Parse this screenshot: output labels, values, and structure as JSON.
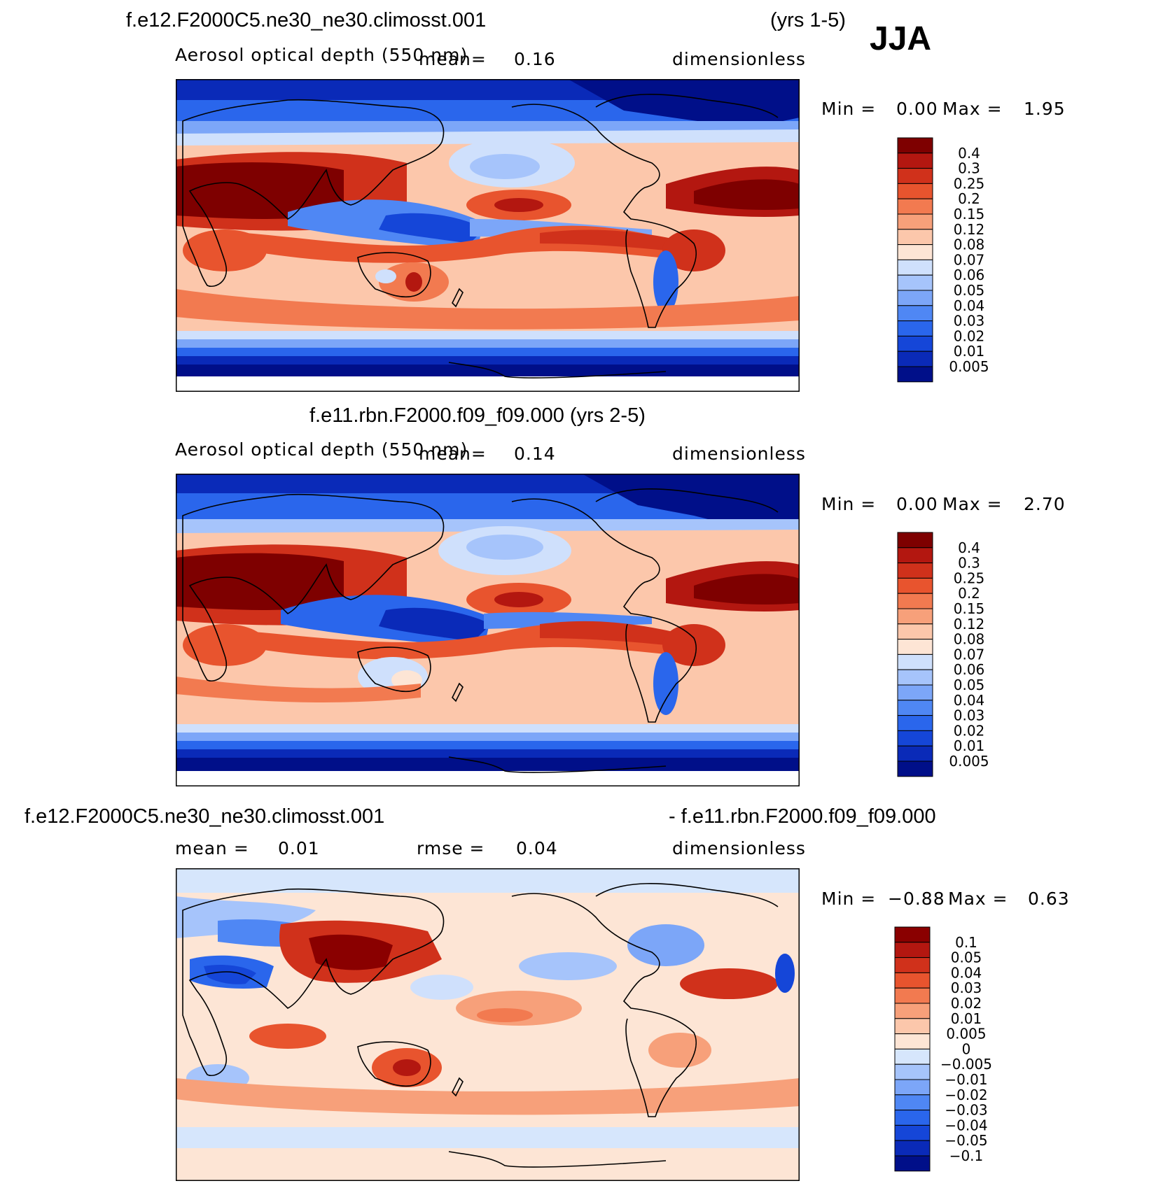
{
  "season": "JJA",
  "panels": [
    {
      "id": "p1",
      "case_label": "f.e12.F2000C5.ne30_ne30.climosst.001",
      "years_label": "(yrs 1-5)",
      "variable": "Aerosol optical depth (550 nm)",
      "mean_label": "mean=",
      "mean_value": "0.16",
      "units": "dimensionless",
      "min_label": "Min =",
      "min_value": "0.00",
      "max_label": "Max =",
      "max_value": "1.95"
    },
    {
      "id": "p2",
      "title": "f.e11.rbn.F2000.f09_f09.000 (yrs 2-5)",
      "variable": "Aerosol optical depth (550 nm)",
      "mean_label": "mean=",
      "mean_value": "0.14",
      "units": "dimensionless",
      "min_label": "Min =",
      "min_value": "0.00",
      "max_label": "Max =",
      "max_value": "2.70"
    },
    {
      "id": "p3",
      "case_a": "f.e12.F2000C5.ne30_ne30.climosst.001",
      "case_b": "- f.e11.rbn.F2000.f09_f09.000",
      "mean_label": "mean =",
      "mean_value": "0.01",
      "rmse_label": "rmse =",
      "rmse_value": "0.04",
      "units": "dimensionless",
      "min_label": "Min =",
      "min_value": "−0.88",
      "max_label": "Max =",
      "max_value": "0.63"
    }
  ],
  "colorbars": {
    "aod": {
      "colors": [
        "#000f89",
        "#0a2ab8",
        "#1546d8",
        "#2a66ec",
        "#4f87f4",
        "#7ca6f8",
        "#a6c4fb",
        "#cfe0fc",
        "#fde5d5",
        "#fcc7ab",
        "#f7a07a",
        "#f27a50",
        "#e8542e",
        "#d0311b",
        "#b31710",
        "#7e0000"
      ],
      "labels": [
        "0.4",
        "0.3",
        "0.25",
        "0.2",
        "0.15",
        "0.12",
        "0.08",
        "0.07",
        "0.06",
        "0.05",
        "0.04",
        "0.03",
        "0.02",
        "0.01",
        "0.005"
      ]
    },
    "diff": {
      "colors": [
        "#000f89",
        "#0a2ab8",
        "#1546d8",
        "#2a66ec",
        "#4f87f4",
        "#7ca6f8",
        "#a6c4fb",
        "#d6e6fc",
        "#fde5d5",
        "#fcc7ab",
        "#f7a07a",
        "#f27a50",
        "#e8542e",
        "#d0311b",
        "#b31710",
        "#8a0000"
      ],
      "labels": [
        "0.1",
        "0.05",
        "0.04",
        "0.03",
        "0.02",
        "0.01",
        "0.005",
        "0",
        "−0.005",
        "−0.01",
        "−0.02",
        "−0.03",
        "−0.04",
        "−0.05",
        "−0.1"
      ]
    }
  }
}
